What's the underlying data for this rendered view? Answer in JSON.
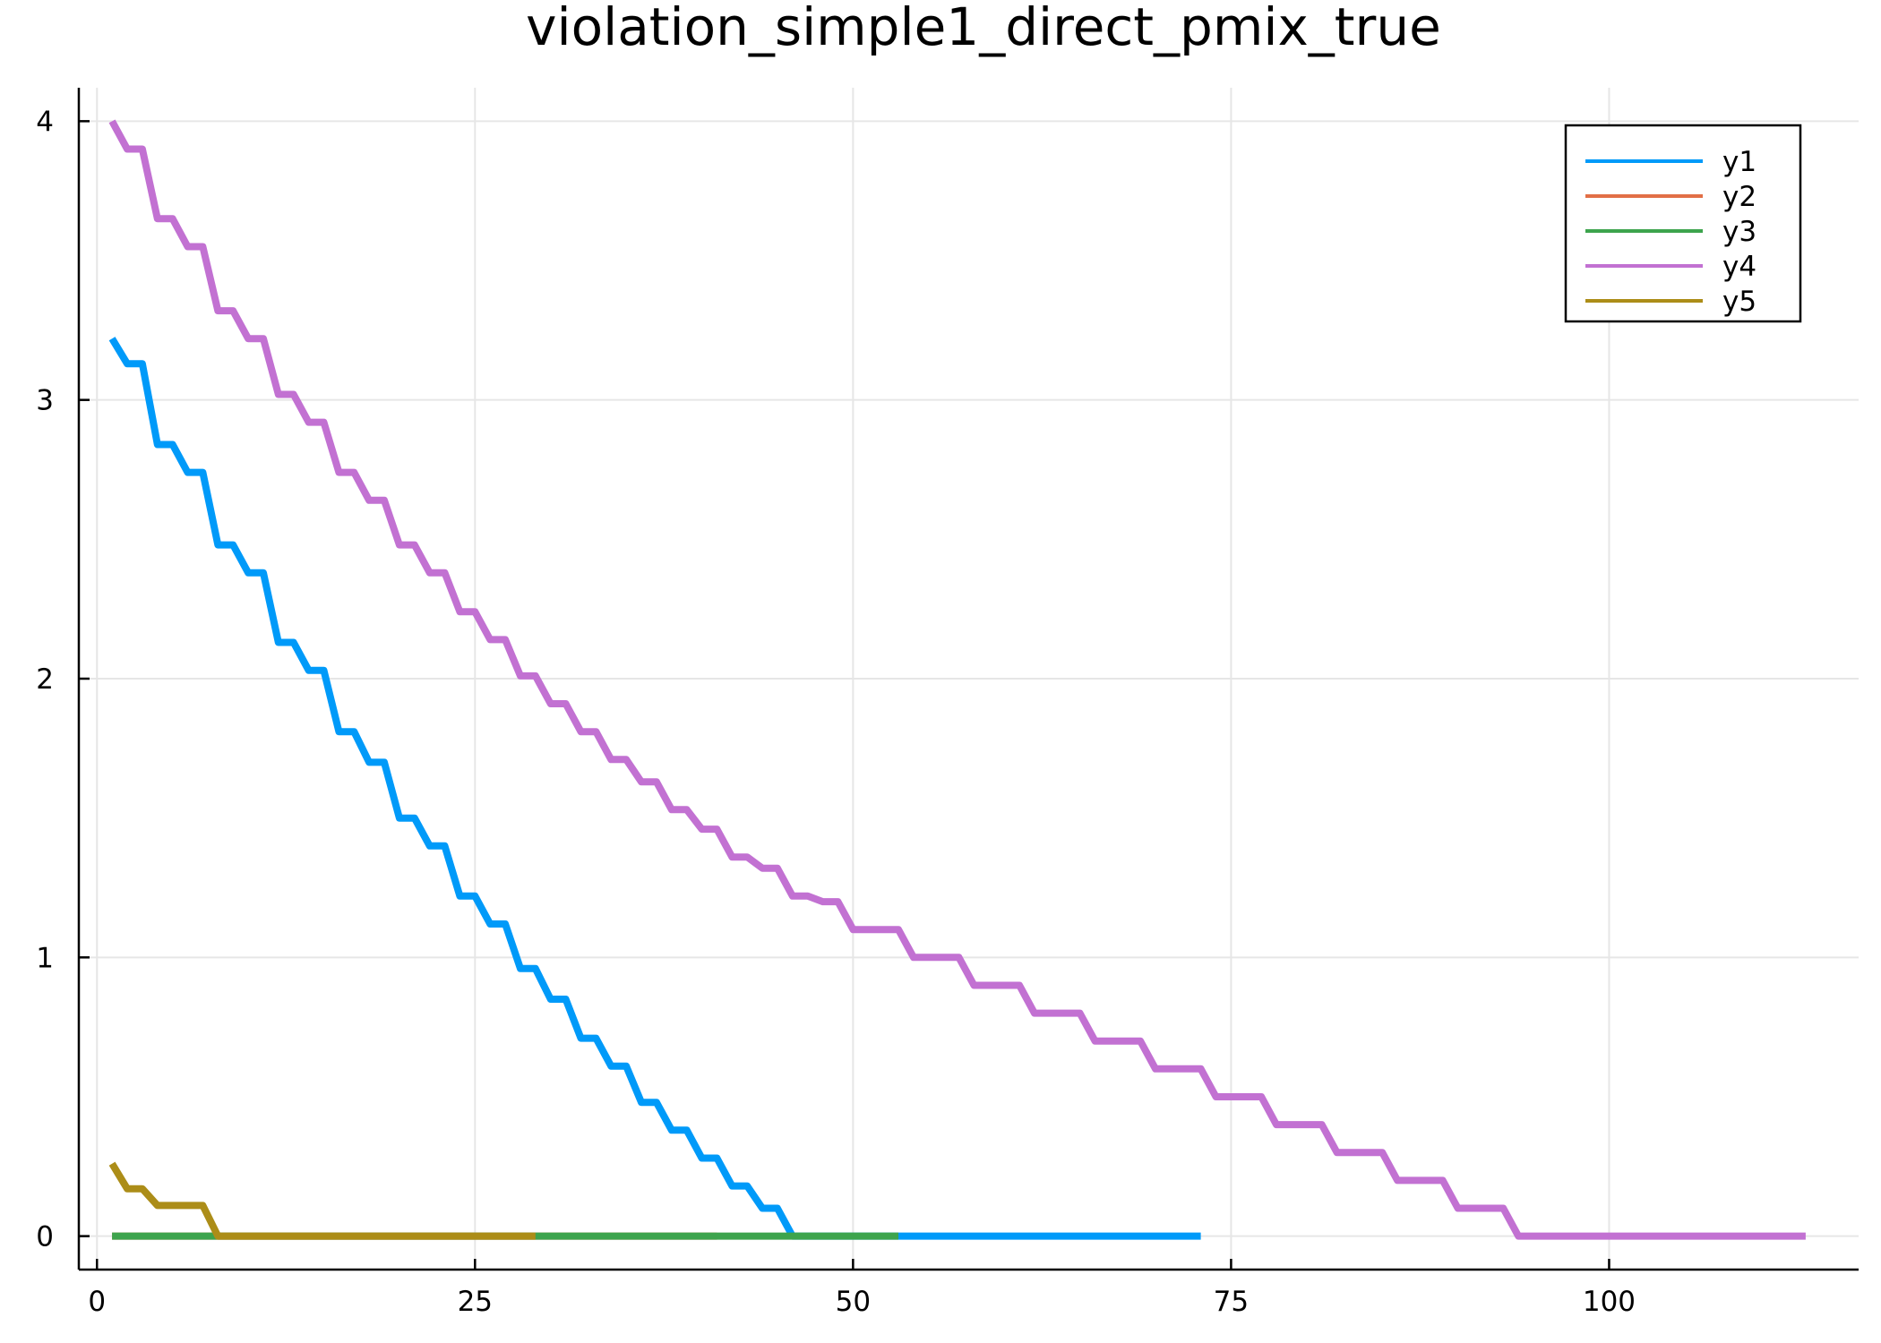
{
  "chart_data": {
    "type": "line",
    "title": "violation_simple1_direct_pmix_true",
    "xlabel": "",
    "ylabel": "",
    "xlim": [
      -1.2,
      116.5
    ],
    "ylim": [
      -0.12,
      4.12
    ],
    "xticks": [
      0,
      25,
      50,
      75,
      100
    ],
    "yticks": [
      0,
      1,
      2,
      3,
      4
    ],
    "grid": true,
    "legend_position": "top-right",
    "series": [
      {
        "name": "y1",
        "color": "#009af9",
        "x": [
          1,
          2,
          3,
          4,
          5,
          6,
          7,
          8,
          9,
          10,
          11,
          12,
          13,
          14,
          15,
          16,
          17,
          18,
          19,
          20,
          21,
          22,
          23,
          24,
          25,
          26,
          27,
          28,
          29,
          30,
          31,
          32,
          33,
          34,
          35,
          36,
          37,
          38,
          39,
          40,
          41,
          42,
          43,
          44,
          45,
          46,
          47,
          48,
          49,
          50,
          51,
          52,
          53,
          54,
          55,
          56,
          57,
          58,
          59,
          60,
          61,
          62,
          63,
          64,
          65,
          66,
          67,
          68,
          69,
          70,
          71,
          72,
          73
        ],
        "y": [
          3.22,
          3.13,
          3.13,
          2.84,
          2.84,
          2.74,
          2.74,
          2.48,
          2.48,
          2.38,
          2.38,
          2.13,
          2.13,
          2.03,
          2.03,
          1.81,
          1.81,
          1.7,
          1.7,
          1.5,
          1.5,
          1.4,
          1.4,
          1.22,
          1.22,
          1.12,
          1.12,
          0.96,
          0.96,
          0.85,
          0.85,
          0.71,
          0.71,
          0.61,
          0.61,
          0.48,
          0.48,
          0.38,
          0.38,
          0.28,
          0.28,
          0.18,
          0.18,
          0.1,
          0.1,
          0,
          0,
          0,
          0,
          0,
          0,
          0,
          0,
          0,
          0,
          0,
          0,
          0,
          0,
          0,
          0,
          0,
          0,
          0,
          0,
          0,
          0,
          0,
          0,
          0,
          0,
          0,
          0
        ]
      },
      {
        "name": "y2",
        "color": "#e26f46",
        "x": [
          1,
          2,
          3,
          4,
          5,
          6,
          7,
          8,
          9,
          10,
          11,
          12,
          13,
          14,
          15,
          16,
          17,
          18,
          19,
          20,
          21,
          22,
          23,
          24,
          25,
          26,
          27,
          28,
          29,
          30,
          31,
          32,
          33,
          34,
          35,
          36,
          37,
          38,
          39,
          40,
          41
        ],
        "y": [
          0,
          0,
          0,
          0,
          0,
          0,
          0,
          0,
          0,
          0,
          0,
          0,
          0,
          0,
          0,
          0,
          0,
          0,
          0,
          0,
          0,
          0,
          0,
          0,
          0,
          0,
          0,
          0,
          0,
          0,
          0,
          0,
          0,
          0,
          0,
          0,
          0,
          0,
          0,
          0,
          0
        ]
      },
      {
        "name": "y3",
        "color": "#3da44d",
        "x": [
          1,
          2,
          3,
          4,
          5,
          6,
          7,
          8,
          9,
          10,
          11,
          12,
          13,
          14,
          15,
          16,
          17,
          18,
          19,
          20,
          21,
          22,
          23,
          24,
          25,
          26,
          27,
          28,
          29,
          30,
          31,
          32,
          33,
          34,
          35,
          36,
          37,
          38,
          39,
          40,
          41,
          42,
          43,
          44,
          45,
          46,
          47,
          48,
          49,
          50,
          51,
          52,
          53
        ],
        "y": [
          0,
          0,
          0,
          0,
          0,
          0,
          0,
          0,
          0,
          0,
          0,
          0,
          0,
          0,
          0,
          0,
          0,
          0,
          0,
          0,
          0,
          0,
          0,
          0,
          0,
          0,
          0,
          0,
          0,
          0,
          0,
          0,
          0,
          0,
          0,
          0,
          0,
          0,
          0,
          0,
          0,
          0,
          0,
          0,
          0,
          0,
          0,
          0,
          0,
          0,
          0,
          0,
          0
        ]
      },
      {
        "name": "y4",
        "color": "#c271d2",
        "x": [
          1,
          2,
          3,
          4,
          5,
          6,
          7,
          8,
          9,
          10,
          11,
          12,
          13,
          14,
          15,
          16,
          17,
          18,
          19,
          20,
          21,
          22,
          23,
          24,
          25,
          26,
          27,
          28,
          29,
          30,
          31,
          32,
          33,
          34,
          35,
          36,
          37,
          38,
          39,
          40,
          41,
          42,
          43,
          44,
          45,
          46,
          47,
          48,
          49,
          50,
          51,
          52,
          53,
          54,
          55,
          56,
          57,
          58,
          59,
          60,
          61,
          62,
          63,
          64,
          65,
          66,
          67,
          68,
          69,
          70,
          71,
          72,
          73,
          74,
          75,
          76,
          77,
          78,
          79,
          80,
          81,
          82,
          83,
          84,
          85,
          86,
          87,
          88,
          89,
          90,
          91,
          92,
          93,
          94,
          95,
          96,
          97,
          98,
          99,
          100,
          101,
          102,
          103,
          104,
          105,
          106,
          107,
          108,
          109,
          110,
          111,
          112,
          113
        ],
        "y": [
          4.0,
          3.9,
          3.9,
          3.65,
          3.65,
          3.55,
          3.55,
          3.32,
          3.32,
          3.22,
          3.22,
          3.02,
          3.02,
          2.92,
          2.92,
          2.74,
          2.74,
          2.64,
          2.64,
          2.48,
          2.48,
          2.38,
          2.38,
          2.24,
          2.24,
          2.14,
          2.14,
          2.01,
          2.01,
          1.91,
          1.91,
          1.81,
          1.81,
          1.71,
          1.71,
          1.63,
          1.63,
          1.53,
          1.53,
          1.46,
          1.46,
          1.36,
          1.36,
          1.32,
          1.32,
          1.22,
          1.22,
          1.2,
          1.2,
          1.1,
          1.1,
          1.1,
          1.1,
          1.0,
          1.0,
          1.0,
          1.0,
          0.9,
          0.9,
          0.9,
          0.9,
          0.8,
          0.8,
          0.8,
          0.8,
          0.7,
          0.7,
          0.7,
          0.7,
          0.6,
          0.6,
          0.6,
          0.6,
          0.5,
          0.5,
          0.5,
          0.5,
          0.4,
          0.4,
          0.4,
          0.4,
          0.3,
          0.3,
          0.3,
          0.3,
          0.2,
          0.2,
          0.2,
          0.2,
          0.1,
          0.1,
          0.1,
          0.1,
          0,
          0,
          0,
          0,
          0,
          0,
          0,
          0,
          0,
          0,
          0,
          0,
          0,
          0,
          0,
          0,
          0,
          0,
          0,
          0
        ]
      },
      {
        "name": "y5",
        "color": "#ac8d18",
        "x": [
          1,
          2,
          3,
          4,
          5,
          6,
          7,
          8,
          9,
          10,
          11,
          12,
          13,
          14,
          15,
          16,
          17,
          18,
          19,
          20,
          21,
          22,
          23,
          24,
          25,
          26,
          27,
          28,
          29
        ],
        "y": [
          0.26,
          0.17,
          0.17,
          0.11,
          0.11,
          0.11,
          0.11,
          0,
          0,
          0,
          0,
          0,
          0,
          0,
          0,
          0,
          0,
          0,
          0,
          0,
          0,
          0,
          0,
          0,
          0,
          0,
          0,
          0,
          0
        ]
      }
    ]
  }
}
